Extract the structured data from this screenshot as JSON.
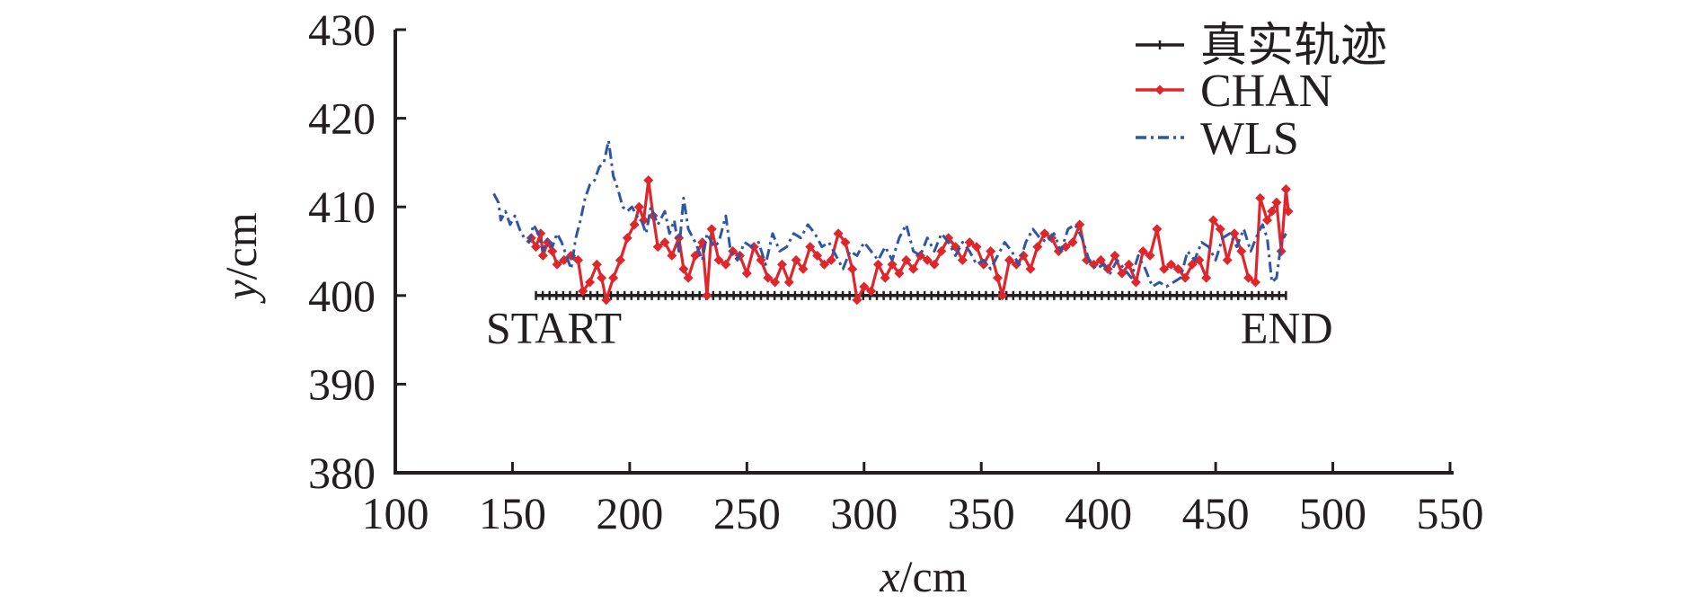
{
  "chart_data": {
    "type": "line",
    "xlabel": {
      "var": "x",
      "unit": "/cm"
    },
    "ylabel": {
      "var": "y",
      "unit": "/cm"
    },
    "xlim": [
      100,
      550
    ],
    "ylim": [
      380,
      430
    ],
    "x_ticks": [
      100,
      150,
      200,
      250,
      300,
      350,
      400,
      450,
      500,
      550
    ],
    "y_ticks": [
      380,
      390,
      400,
      410,
      420,
      430
    ],
    "grid": false,
    "legend_position": "top-right",
    "annotations": [
      {
        "text": "START",
        "x": 160,
        "y": 396.5
      },
      {
        "text": "END",
        "x": 465,
        "y": 396.5
      }
    ],
    "series": [
      {
        "name": "真实轨迹",
        "color": "#231f20",
        "style": "solid-plus",
        "points": [
          [
            160,
            400
          ],
          [
            480,
            400
          ]
        ]
      },
      {
        "name": "CHAN",
        "color": "#e0262b",
        "style": "solid-diamond",
        "points": [
          [
            158,
            406.5
          ],
          [
            160,
            405.5
          ],
          [
            162,
            407
          ],
          [
            163,
            404.5
          ],
          [
            165,
            406
          ],
          [
            167,
            405
          ],
          [
            169,
            403.5
          ],
          [
            172,
            404
          ],
          [
            175,
            404.5
          ],
          [
            178,
            404
          ],
          [
            180,
            400.5
          ],
          [
            183,
            401.5
          ],
          [
            186,
            403.5
          ],
          [
            188,
            402
          ],
          [
            190,
            399.5
          ],
          [
            193,
            402
          ],
          [
            196,
            404
          ],
          [
            199,
            406.5
          ],
          [
            202,
            408
          ],
          [
            204,
            410
          ],
          [
            206,
            408.5
          ],
          [
            208,
            413
          ],
          [
            210,
            409
          ],
          [
            212,
            405.5
          ],
          [
            215,
            406
          ],
          [
            218,
            404.5
          ],
          [
            221,
            406.5
          ],
          [
            223,
            403
          ],
          [
            225,
            402
          ],
          [
            228,
            404.5
          ],
          [
            231,
            406
          ],
          [
            233,
            400
          ],
          [
            235,
            407.5
          ],
          [
            238,
            404
          ],
          [
            241,
            403.5
          ],
          [
            244,
            405
          ],
          [
            247,
            404.5
          ],
          [
            250,
            402.5
          ],
          [
            253,
            405.5
          ],
          [
            256,
            404
          ],
          [
            259,
            402
          ],
          [
            262,
            401.5
          ],
          [
            265,
            403.5
          ],
          [
            268,
            401.5
          ],
          [
            271,
            404
          ],
          [
            274,
            403
          ],
          [
            277,
            405.5
          ],
          [
            280,
            404.5
          ],
          [
            283,
            403.5
          ],
          [
            286,
            404
          ],
          [
            289,
            407
          ],
          [
            292,
            406
          ],
          [
            295,
            403
          ],
          [
            297,
            399.5
          ],
          [
            300,
            401
          ],
          [
            303,
            400.5
          ],
          [
            306,
            403.5
          ],
          [
            309,
            402
          ],
          [
            312,
            403.5
          ],
          [
            315,
            402.5
          ],
          [
            318,
            404
          ],
          [
            321,
            403
          ],
          [
            324,
            404.5
          ],
          [
            327,
            404
          ],
          [
            330,
            403.5
          ],
          [
            333,
            405
          ],
          [
            336,
            406.5
          ],
          [
            339,
            405.5
          ],
          [
            342,
            404
          ],
          [
            345,
            406
          ],
          [
            348,
            405.5
          ],
          [
            351,
            403.5
          ],
          [
            354,
            405
          ],
          [
            357,
            402
          ],
          [
            359,
            400
          ],
          [
            362,
            404
          ],
          [
            365,
            403.5
          ],
          [
            368,
            404.5
          ],
          [
            371,
            403
          ],
          [
            374,
            405.5
          ],
          [
            377,
            407
          ],
          [
            380,
            406.5
          ],
          [
            383,
            405
          ],
          [
            386,
            405.5
          ],
          [
            389,
            406
          ],
          [
            392,
            408
          ],
          [
            395,
            404
          ],
          [
            398,
            403.5
          ],
          [
            401,
            404
          ],
          [
            404,
            403
          ],
          [
            407,
            404.5
          ],
          [
            410,
            402.5
          ],
          [
            413,
            403.5
          ],
          [
            416,
            401.5
          ],
          [
            419,
            405
          ],
          [
            422,
            404.5
          ],
          [
            425,
            407.5
          ],
          [
            428,
            403
          ],
          [
            431,
            403.5
          ],
          [
            434,
            403
          ],
          [
            437,
            402
          ],
          [
            440,
            403.5
          ],
          [
            443,
            404
          ],
          [
            446,
            402
          ],
          [
            449,
            408.5
          ],
          [
            452,
            407.5
          ],
          [
            455,
            404
          ],
          [
            458,
            407
          ],
          [
            461,
            405
          ],
          [
            464,
            402
          ],
          [
            467,
            401.5
          ],
          [
            469,
            411
          ],
          [
            472,
            408.5
          ],
          [
            474,
            409.5
          ],
          [
            476,
            410.5
          ],
          [
            478,
            405
          ],
          [
            480,
            412
          ],
          [
            481,
            409.5
          ]
        ]
      },
      {
        "name": "WLS",
        "color": "#2f56a6",
        "style": "dash-dot",
        "points": [
          [
            142,
            411.5
          ],
          [
            144,
            410.5
          ],
          [
            145,
            408.5
          ],
          [
            147,
            409.5
          ],
          [
            149,
            408
          ],
          [
            151,
            409
          ],
          [
            153,
            407.5
          ],
          [
            155,
            406.5
          ],
          [
            157,
            406
          ],
          [
            159,
            408
          ],
          [
            161,
            407
          ],
          [
            163,
            405
          ],
          [
            165,
            406.5
          ],
          [
            167,
            405.5
          ],
          [
            169,
            407
          ],
          [
            171,
            406
          ],
          [
            173,
            404.5
          ],
          [
            175,
            403
          ],
          [
            177,
            406.5
          ],
          [
            179,
            408.5
          ],
          [
            181,
            411
          ],
          [
            183,
            412.5
          ],
          [
            185,
            413
          ],
          [
            187,
            414.5
          ],
          [
            189,
            415
          ],
          [
            191,
            417.5
          ],
          [
            193,
            413.5
          ],
          [
            195,
            412
          ],
          [
            197,
            410
          ],
          [
            199,
            409.5
          ],
          [
            201,
            410
          ],
          [
            203,
            409
          ],
          [
            205,
            408.5
          ],
          [
            207,
            407
          ],
          [
            209,
            410
          ],
          [
            212,
            408
          ],
          [
            215,
            409.5
          ],
          [
            217,
            407
          ],
          [
            219,
            408.5
          ],
          [
            221,
            405
          ],
          [
            223,
            411
          ],
          [
            225,
            407.5
          ],
          [
            228,
            406
          ],
          [
            231,
            404
          ],
          [
            233,
            407
          ],
          [
            236,
            405.5
          ],
          [
            238,
            406
          ],
          [
            241,
            409
          ],
          [
            243,
            405
          ],
          [
            246,
            404
          ],
          [
            249,
            406
          ],
          [
            252,
            405.5
          ],
          [
            255,
            406
          ],
          [
            258,
            403.5
          ],
          [
            261,
            407
          ],
          [
            264,
            405
          ],
          [
            267,
            405.5
          ],
          [
            270,
            407
          ],
          [
            273,
            406.5
          ],
          [
            276,
            408
          ],
          [
            279,
            407
          ],
          [
            282,
            405.5
          ],
          [
            285,
            406
          ],
          [
            288,
            404.5
          ],
          [
            291,
            403
          ],
          [
            294,
            405
          ],
          [
            297,
            404.5
          ],
          [
            300,
            406
          ],
          [
            303,
            405
          ],
          [
            306,
            404
          ],
          [
            309,
            405.5
          ],
          [
            312,
            404
          ],
          [
            315,
            406.5
          ],
          [
            318,
            408
          ],
          [
            321,
            405
          ],
          [
            324,
            404.5
          ],
          [
            327,
            406.5
          ],
          [
            330,
            405
          ],
          [
            333,
            407
          ],
          [
            336,
            406
          ],
          [
            339,
            404.5
          ],
          [
            342,
            406
          ],
          [
            345,
            405
          ],
          [
            348,
            403.5
          ],
          [
            351,
            404
          ],
          [
            354,
            403
          ],
          [
            357,
            404.5
          ],
          [
            360,
            406
          ],
          [
            363,
            405
          ],
          [
            366,
            403.5
          ],
          [
            369,
            406
          ],
          [
            372,
            407.5
          ],
          [
            375,
            406.5
          ],
          [
            378,
            406
          ],
          [
            381,
            407
          ],
          [
            384,
            405
          ],
          [
            387,
            407.5
          ],
          [
            390,
            408
          ],
          [
            393,
            406.5
          ],
          [
            396,
            404
          ],
          [
            399,
            403
          ],
          [
            402,
            403.5
          ],
          [
            405,
            402.5
          ],
          [
            408,
            404
          ],
          [
            411,
            403
          ],
          [
            414,
            402
          ],
          [
            417,
            404.5
          ],
          [
            420,
            403
          ],
          [
            423,
            401
          ],
          [
            426,
            401.5
          ],
          [
            429,
            401
          ],
          [
            432,
            401.5
          ],
          [
            435,
            402
          ],
          [
            438,
            405
          ],
          [
            441,
            404
          ],
          [
            444,
            406
          ],
          [
            447,
            405.5
          ],
          [
            450,
            404
          ],
          [
            453,
            406.5
          ],
          [
            456,
            407
          ],
          [
            459,
            405.5
          ],
          [
            462,
            407.5
          ],
          [
            465,
            405
          ],
          [
            468,
            407
          ],
          [
            470,
            408
          ],
          [
            472,
            406.5
          ],
          [
            474,
            401.5
          ],
          [
            476,
            402
          ],
          [
            478,
            406
          ],
          [
            480,
            407
          ]
        ]
      }
    ]
  }
}
